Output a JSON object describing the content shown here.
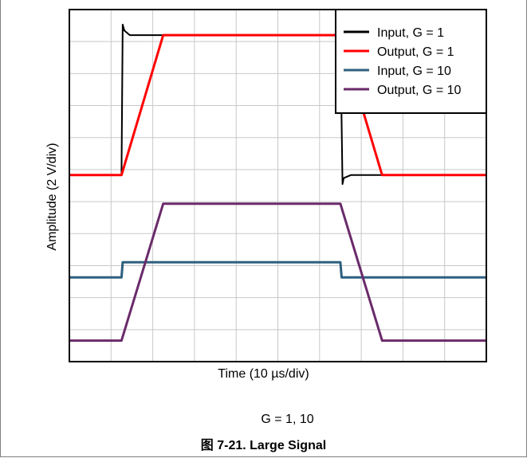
{
  "chart_data": {
    "type": "line",
    "xlabel": "Time (10 µs/div)",
    "ylabel": "Amplitude (2 V/div)",
    "subtitle": "G = 1, 10",
    "caption": "图 7-21. Large Signal",
    "grid": true,
    "legend_position": "top-right",
    "x_divisions": 10,
    "y_divisions": 11,
    "xlim": [
      0,
      10
    ],
    "ylim": [
      0,
      11
    ],
    "series": [
      {
        "name": "Input, G = 1",
        "color": "#000000",
        "x": [
          0,
          1.25,
          1.28,
          1.32,
          1.45,
          6.5,
          6.55,
          6.58,
          6.75,
          10
        ],
        "y": [
          5.5,
          5.5,
          10.5,
          10.3,
          10.15,
          10.15,
          5.2,
          5.4,
          5.5,
          5.5
        ]
      },
      {
        "name": "Output, G = 1",
        "color": "#ff0000",
        "x": [
          0,
          1.25,
          2.25,
          6.5,
          7.5,
          10
        ],
        "y": [
          5.5,
          5.5,
          10.15,
          10.15,
          5.5,
          5.5
        ]
      },
      {
        "name": "Input, G = 10",
        "color": "#2e5f7f",
        "x": [
          0,
          1.25,
          1.28,
          6.5,
          6.53,
          10
        ],
        "y": [
          2.1,
          2.1,
          2.6,
          2.6,
          2.1,
          2.1
        ]
      },
      {
        "name": "Output, G = 10",
        "color": "#6a2a6a",
        "x": [
          0,
          1.25,
          2.25,
          6.5,
          7.5,
          10
        ],
        "y": [
          0.0,
          0.0,
          4.55,
          4.55,
          0.0,
          0.0
        ]
      }
    ]
  }
}
